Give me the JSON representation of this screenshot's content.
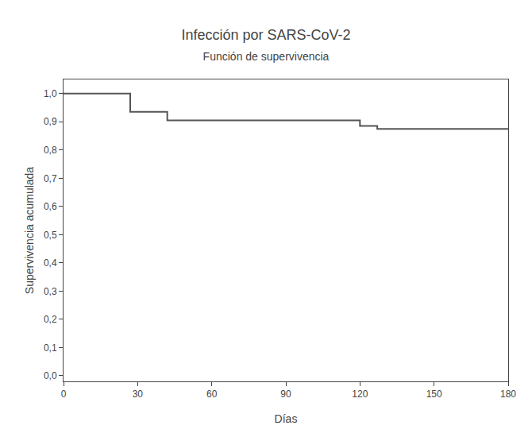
{
  "chart_data": {
    "type": "line",
    "title": "Infección por SARS-CoV-2",
    "subtitle": "Función de supervivencia",
    "xlabel": "Días",
    "ylabel": "Supervivencia acumulada",
    "x": [
      0,
      27,
      27,
      42,
      42,
      120,
      120,
      127,
      127,
      180
    ],
    "values": [
      1.0,
      1.0,
      0.935,
      0.935,
      0.905,
      0.905,
      0.885,
      0.885,
      0.875,
      0.875
    ],
    "color": "#555555",
    "xlim": [
      0,
      180
    ],
    "ylim": [
      -0.02,
      1.05
    ],
    "xticks": [
      0,
      30,
      60,
      90,
      120,
      150,
      180
    ],
    "yticks": [
      {
        "value": 0.0,
        "label": "0,0"
      },
      {
        "value": 0.1,
        "label": "0,1"
      },
      {
        "value": 0.2,
        "label": "0,2"
      },
      {
        "value": 0.3,
        "label": "0,3"
      },
      {
        "value": 0.4,
        "label": "0,4"
      },
      {
        "value": 0.5,
        "label": "0,5"
      },
      {
        "value": 0.6,
        "label": "0,6"
      },
      {
        "value": 0.7,
        "label": "0,7"
      },
      {
        "value": 0.8,
        "label": "0,8"
      },
      {
        "value": 0.9,
        "label": "0,9"
      },
      {
        "value": 1.0,
        "label": "1,0"
      }
    ],
    "grid": false
  }
}
